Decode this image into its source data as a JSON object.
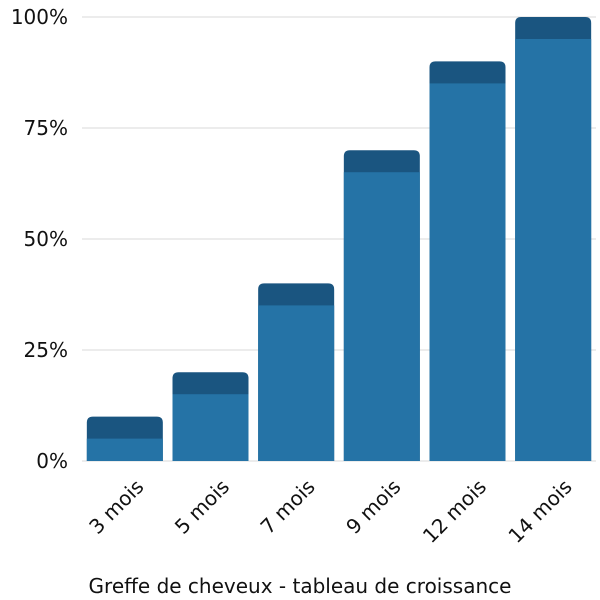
{
  "chart_data": {
    "type": "bar",
    "title": "",
    "xlabel": "Greffe de cheveux - tableau de croissance",
    "ylabel": "",
    "categories": [
      "3 mois",
      "5 mois",
      "7 mois",
      "9 mois",
      "12 mois",
      "14 mois"
    ],
    "values": [
      10,
      20,
      40,
      70,
      90,
      100
    ],
    "ylim": [
      0,
      100
    ],
    "yticks": [
      0,
      25,
      50,
      75,
      100
    ],
    "ytick_labels": [
      "0%",
      "25%",
      "50%",
      "75%",
      "100%"
    ],
    "grid": true,
    "colors": {
      "bar": "#2573a6",
      "bar_cap": "#1a5580"
    }
  }
}
